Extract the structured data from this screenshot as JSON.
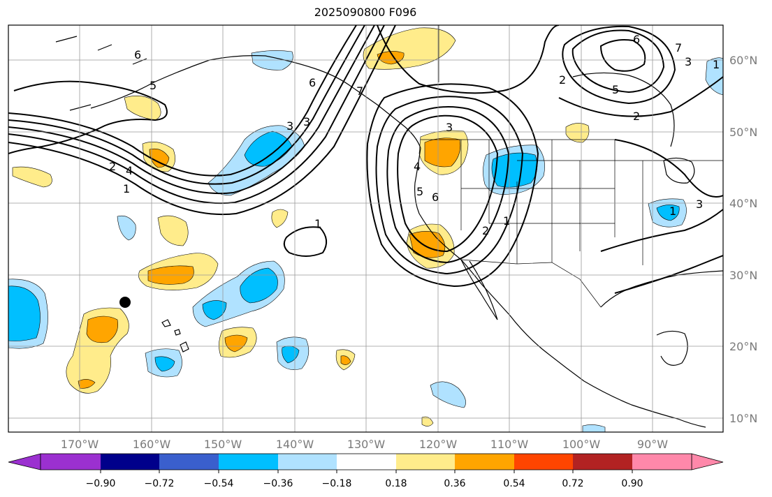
{
  "title": "2025090800 F096",
  "latitude_labels": [
    "60°N",
    "50°N",
    "40°N",
    "30°N",
    "20°N",
    "10°N"
  ],
  "longitude_labels": [
    "170°W",
    "160°W",
    "150°W",
    "140°W",
    "130°W",
    "120°W",
    "110°W",
    "100°W",
    "90°W"
  ],
  "colorbar": {
    "tick_labels": [
      "−0.90",
      "−0.72",
      "−0.54",
      "−0.36",
      "−0.18",
      "0.18",
      "0.36",
      "0.54",
      "0.72",
      "0.90"
    ],
    "colors": [
      "#9b30d0",
      "#00008b",
      "#3a5fcd",
      "#00bfff",
      "#b0e2ff",
      "#ffffff",
      "#ffec8b",
      "#ffa500",
      "#ff4500",
      "#b22222",
      "#ff88aa"
    ]
  },
  "fill_colors": {
    "pos1": "#ffec8b",
    "pos2": "#ffa500",
    "neg1": "#b0e2ff",
    "neg2": "#00bfff"
  },
  "contour_labels": [
    "6",
    "5",
    "2",
    "1",
    "4",
    "3",
    "6",
    "3",
    "1",
    "7",
    "3",
    "5",
    "6",
    "4",
    "2",
    "1",
    "2",
    "5",
    "6",
    "7",
    "3",
    "1",
    "2",
    "3",
    "1"
  ]
}
